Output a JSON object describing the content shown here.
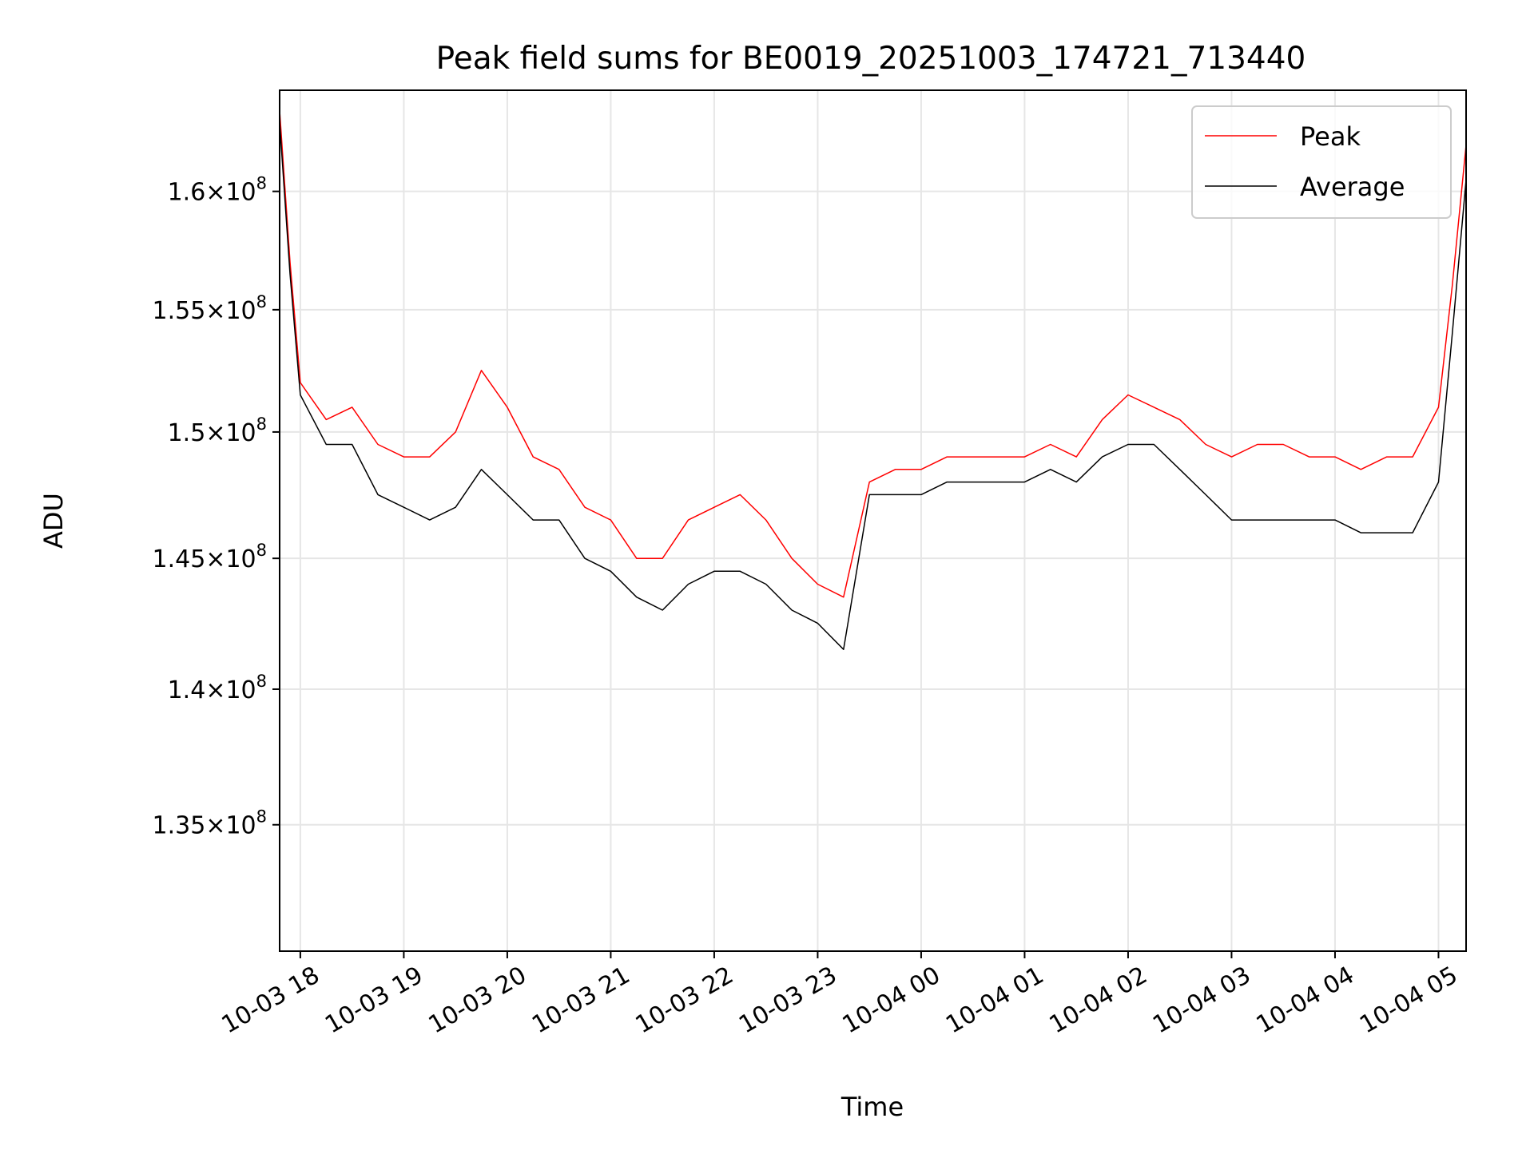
{
  "chart_data": {
    "type": "line",
    "title": "Peak field sums for BE0019_20251003_174721_713440",
    "xlabel": "Time",
    "ylabel": "ADU",
    "y_scale": "log",
    "grid": true,
    "legend_position": "top-right",
    "xlim": [
      "2025-10-03T17:48",
      "2025-10-04T05:16"
    ],
    "ylim": [
      130500000,
      164400000
    ],
    "x_ticks": [
      {
        "t": "2025-10-03T18:00",
        "label": "10-03 18"
      },
      {
        "t": "2025-10-03T19:00",
        "label": "10-03 19"
      },
      {
        "t": "2025-10-03T20:00",
        "label": "10-03 20"
      },
      {
        "t": "2025-10-03T21:00",
        "label": "10-03 21"
      },
      {
        "t": "2025-10-03T22:00",
        "label": "10-03 22"
      },
      {
        "t": "2025-10-03T23:00",
        "label": "10-03 23"
      },
      {
        "t": "2025-10-04T00:00",
        "label": "10-04 00"
      },
      {
        "t": "2025-10-04T01:00",
        "label": "10-04 01"
      },
      {
        "t": "2025-10-04T02:00",
        "label": "10-04 02"
      },
      {
        "t": "2025-10-04T03:00",
        "label": "10-04 03"
      },
      {
        "t": "2025-10-04T04:00",
        "label": "10-04 04"
      },
      {
        "t": "2025-10-04T05:00",
        "label": "10-04 05"
      }
    ],
    "y_ticks": [
      {
        "v": 135000000,
        "mantissa": "1.35",
        "exp": "8"
      },
      {
        "v": 140000000,
        "mantissa": "1.4",
        "exp": "8"
      },
      {
        "v": 145000000,
        "mantissa": "1.45",
        "exp": "8"
      },
      {
        "v": 150000000,
        "mantissa": "1.5",
        "exp": "8"
      },
      {
        "v": 155000000,
        "mantissa": "1.55",
        "exp": "8"
      },
      {
        "v": 160000000,
        "mantissa": "1.6",
        "exp": "8"
      }
    ],
    "series": [
      {
        "name": "Peak",
        "color": "#ff0000",
        "x": [
          "2025-10-03T17:48",
          "2025-10-03T17:54",
          "2025-10-03T18:00",
          "2025-10-03T18:15",
          "2025-10-03T18:30",
          "2025-10-03T18:45",
          "2025-10-03T19:00",
          "2025-10-03T19:15",
          "2025-10-03T19:30",
          "2025-10-03T19:45",
          "2025-10-03T20:00",
          "2025-10-03T20:15",
          "2025-10-03T20:30",
          "2025-10-03T20:45",
          "2025-10-03T21:00",
          "2025-10-03T21:15",
          "2025-10-03T21:30",
          "2025-10-03T21:45",
          "2025-10-03T22:00",
          "2025-10-03T22:15",
          "2025-10-03T22:30",
          "2025-10-03T22:45",
          "2025-10-03T23:00",
          "2025-10-03T23:15",
          "2025-10-03T23:30",
          "2025-10-03T23:45",
          "2025-10-04T00:00",
          "2025-10-04T00:15",
          "2025-10-04T00:30",
          "2025-10-04T00:45",
          "2025-10-04T01:00",
          "2025-10-04T01:15",
          "2025-10-04T01:30",
          "2025-10-04T01:45",
          "2025-10-04T02:00",
          "2025-10-04T02:15",
          "2025-10-04T02:30",
          "2025-10-04T02:45",
          "2025-10-04T03:00",
          "2025-10-04T03:15",
          "2025-10-04T03:30",
          "2025-10-04T03:45",
          "2025-10-04T04:00",
          "2025-10-04T04:15",
          "2025-10-04T04:30",
          "2025-10-04T04:45",
          "2025-10-04T05:00",
          "2025-10-04T05:08",
          "2025-10-04T05:16"
        ],
        "y": [
          163500000,
          157000000,
          152000000,
          150500000,
          151000000,
          149500000,
          149000000,
          149000000,
          150000000,
          152500000,
          151000000,
          149000000,
          148500000,
          147000000,
          146500000,
          145000000,
          145000000,
          146500000,
          147000000,
          147500000,
          146500000,
          145000000,
          144000000,
          143500000,
          148000000,
          148500000,
          148500000,
          149000000,
          149000000,
          149000000,
          149000000,
          149500000,
          149000000,
          150500000,
          151500000,
          151000000,
          150500000,
          149500000,
          149000000,
          149500000,
          149500000,
          149000000,
          149000000,
          148500000,
          149000000,
          149000000,
          151000000,
          156000000,
          162000000
        ]
      },
      {
        "name": "Average",
        "color": "#000000",
        "x": [
          "2025-10-03T17:48",
          "2025-10-03T17:54",
          "2025-10-03T18:00",
          "2025-10-03T18:15",
          "2025-10-03T18:30",
          "2025-10-03T18:45",
          "2025-10-03T19:00",
          "2025-10-03T19:15",
          "2025-10-03T19:30",
          "2025-10-03T19:45",
          "2025-10-03T20:00",
          "2025-10-03T20:15",
          "2025-10-03T20:30",
          "2025-10-03T20:45",
          "2025-10-03T21:00",
          "2025-10-03T21:15",
          "2025-10-03T21:30",
          "2025-10-03T21:45",
          "2025-10-03T22:00",
          "2025-10-03T22:15",
          "2025-10-03T22:30",
          "2025-10-03T22:45",
          "2025-10-03T23:00",
          "2025-10-03T23:15",
          "2025-10-03T23:30",
          "2025-10-03T23:45",
          "2025-10-04T00:00",
          "2025-10-04T00:15",
          "2025-10-04T00:30",
          "2025-10-04T00:45",
          "2025-10-04T01:00",
          "2025-10-04T01:15",
          "2025-10-04T01:30",
          "2025-10-04T01:45",
          "2025-10-04T02:00",
          "2025-10-04T02:15",
          "2025-10-04T02:30",
          "2025-10-04T02:45",
          "2025-10-04T03:00",
          "2025-10-04T03:15",
          "2025-10-04T03:30",
          "2025-10-04T03:45",
          "2025-10-04T04:00",
          "2025-10-04T04:15",
          "2025-10-04T04:30",
          "2025-10-04T04:45",
          "2025-10-04T05:00",
          "2025-10-04T05:08",
          "2025-10-04T05:16"
        ],
        "y": [
          163000000,
          156500000,
          151500000,
          149500000,
          149500000,
          147500000,
          147000000,
          146500000,
          147000000,
          148500000,
          147500000,
          146500000,
          146500000,
          145000000,
          144500000,
          143500000,
          143000000,
          144000000,
          144500000,
          144500000,
          144000000,
          143000000,
          142500000,
          141500000,
          147500000,
          147500000,
          147500000,
          148000000,
          148000000,
          148000000,
          148000000,
          148500000,
          148000000,
          149000000,
          149500000,
          149500000,
          148500000,
          147500000,
          146500000,
          146500000,
          146500000,
          146500000,
          146500000,
          146000000,
          146000000,
          146000000,
          148000000,
          154000000,
          160500000
        ]
      }
    ]
  }
}
